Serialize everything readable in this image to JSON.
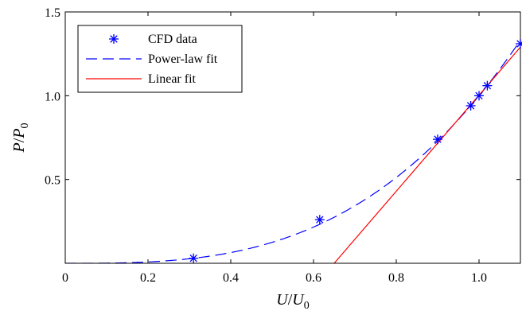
{
  "chart_data": {
    "type": "line",
    "title": "",
    "xlabel": {
      "main": "U",
      "sep": "/",
      "base": "U",
      "sub": "0"
    },
    "ylabel": {
      "main": "P",
      "sep": "/",
      "base": "P",
      "sub": "0"
    },
    "xlim": [
      0,
      1.1
    ],
    "ylim": [
      0,
      1.5
    ],
    "xticks": [
      0,
      0.2,
      0.4,
      0.6,
      0.8,
      1.0
    ],
    "xtick_labels": [
      "0",
      "0.2",
      "0.4",
      "0.6",
      "0.8",
      "1.0"
    ],
    "yticks": [
      0.5,
      1.0,
      1.5
    ],
    "ytick_labels": [
      "0.5",
      "1.0",
      "1.5"
    ],
    "grid": false,
    "legend_position": "top-left",
    "series": [
      {
        "name": "CFD data",
        "kind": "markers",
        "marker": "asterisk",
        "color": "#0000ff",
        "x": [
          0.31,
          0.615,
          0.9,
          0.98,
          1.0,
          1.02,
          1.1
        ],
        "y": [
          0.03,
          0.26,
          0.74,
          0.94,
          1.0,
          1.06,
          1.31
        ]
      },
      {
        "name": "Power-law fit",
        "kind": "dashed-line",
        "color": "#0000ff",
        "form": "y = x^3",
        "x": [
          0,
          0.1,
          0.2,
          0.3,
          0.4,
          0.5,
          0.6,
          0.7,
          0.8,
          0.9,
          1.0,
          1.1
        ],
        "y": [
          0,
          0.001,
          0.008,
          0.027,
          0.064,
          0.125,
          0.216,
          0.343,
          0.512,
          0.729,
          1.0,
          1.331
        ]
      },
      {
        "name": "Linear fit",
        "kind": "solid-line",
        "color": "#ff0000",
        "x": [
          0.65,
          1.1
        ],
        "y": [
          0,
          1.29
        ]
      }
    ]
  }
}
